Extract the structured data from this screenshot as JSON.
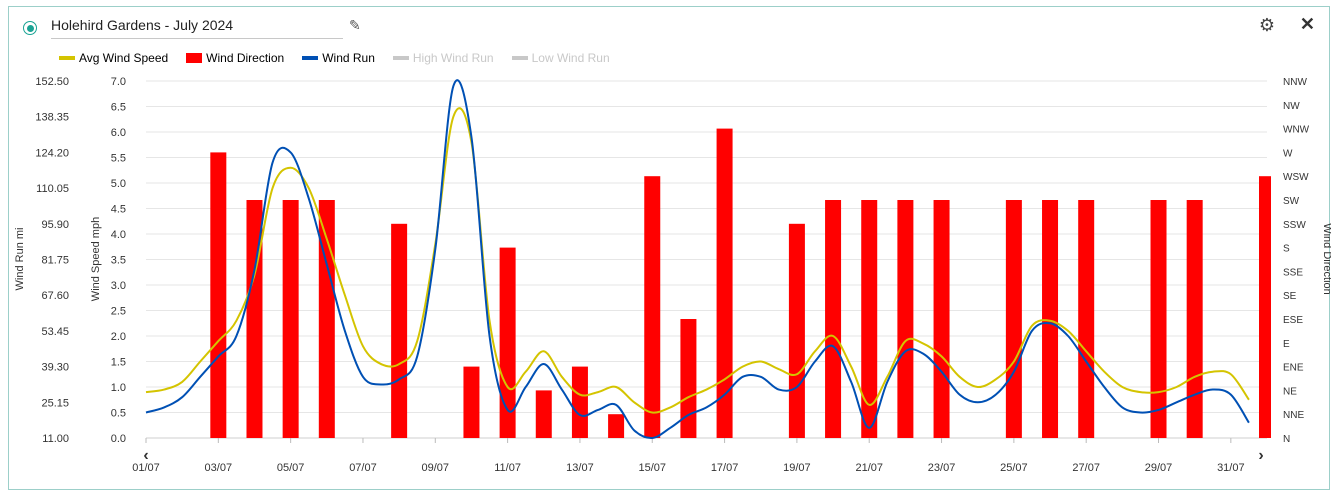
{
  "header": {
    "title": "Holehird Gardens - July 2024"
  },
  "legend": [
    {
      "label": "Avg Wind Speed",
      "color": "#d4c400",
      "enabled": true
    },
    {
      "label": "Wind Direction",
      "color": "#ff0000",
      "enabled": true
    },
    {
      "label": "Wind Run",
      "color": "#0050b4",
      "enabled": true
    },
    {
      "label": "High Wind Run",
      "color": "#c8c8c8",
      "enabled": false
    },
    {
      "label": "Low Wind Run",
      "color": "#c8c8c8",
      "enabled": false
    }
  ],
  "chart_data": {
    "type": "line",
    "x_ticks": [
      "01/07",
      "03/07",
      "05/07",
      "07/07",
      "09/07",
      "11/07",
      "13/07",
      "15/07",
      "17/07",
      "19/07",
      "21/07",
      "23/07",
      "25/07",
      "27/07",
      "29/07",
      "31/07"
    ],
    "yaxis_run": {
      "label": "Wind Run mi",
      "ticks": [
        "11.00",
        "25.15",
        "39.30",
        "53.45",
        "67.60",
        "81.75",
        "95.90",
        "110.05",
        "124.20",
        "138.35",
        "152.50"
      ],
      "range": [
        11,
        152.5
      ]
    },
    "yaxis_speed": {
      "label": "Wind Speed mph",
      "ticks": [
        "0.0",
        "0.5",
        "1.0",
        "1.5",
        "2.0",
        "2.5",
        "3.0",
        "3.5",
        "4.0",
        "4.5",
        "5.0",
        "5.5",
        "6.0",
        "6.5",
        "7.0"
      ],
      "range": [
        0,
        7
      ]
    },
    "yaxis_direction": {
      "label": "Wind Direction",
      "ticks": [
        "N",
        "NNE",
        "NE",
        "ENE",
        "E",
        "ESE",
        "SE",
        "SSE",
        "S",
        "SSW",
        "SW",
        "WSW",
        "W",
        "WNW",
        "NW",
        "NNW"
      ]
    },
    "avg_wind_speed": {
      "x": [
        1,
        1.5,
        2,
        2.5,
        3,
        3.5,
        4,
        4.5,
        5,
        5.5,
        6,
        6.5,
        7,
        7.5,
        8,
        8.5,
        9,
        9.5,
        10,
        10.5,
        11,
        11.5,
        12,
        12.5,
        13,
        13.5,
        14,
        14.5,
        15,
        15.5,
        16,
        16.5,
        17,
        17.5,
        18,
        18.5,
        19,
        19.5,
        20,
        20.5,
        21,
        21.5,
        22,
        22.5,
        23,
        23.5,
        24,
        24.5,
        25,
        25.5,
        26,
        26.5,
        27,
        27.5,
        28,
        28.5,
        29,
        29.5,
        30,
        30.5,
        31,
        31.5
      ],
      "y": [
        0.9,
        0.95,
        1.1,
        1.5,
        1.9,
        2.3,
        3.2,
        4.9,
        5.3,
        4.9,
        3.9,
        2.8,
        1.8,
        1.45,
        1.45,
        1.9,
        3.8,
        6.3,
        5.8,
        2.3,
        1.0,
        1.3,
        1.7,
        1.2,
        0.85,
        0.9,
        1.0,
        0.7,
        0.5,
        0.6,
        0.8,
        0.95,
        1.15,
        1.4,
        1.5,
        1.35,
        1.25,
        1.7,
        2.0,
        1.4,
        0.65,
        1.2,
        1.9,
        1.85,
        1.6,
        1.2,
        1.0,
        1.15,
        1.5,
        2.2,
        2.3,
        2.1,
        1.7,
        1.3,
        1.0,
        0.9,
        0.9,
        1.0,
        1.2,
        1.3,
        1.25,
        0.75
      ]
    },
    "wind_run": {
      "x": [
        1,
        1.5,
        2,
        2.5,
        3,
        3.5,
        4,
        4.5,
        5,
        5.5,
        6,
        6.5,
        7,
        7.5,
        8,
        8.5,
        9,
        9.5,
        10,
        10.5,
        11,
        11.5,
        12,
        12.5,
        13,
        13.5,
        14,
        14.5,
        15,
        15.5,
        16,
        16.5,
        17,
        17.5,
        18,
        18.5,
        19,
        19.5,
        20,
        20.5,
        21,
        21.5,
        22,
        22.5,
        23,
        23.5,
        24,
        24.5,
        25,
        25.5,
        26,
        26.5,
        27,
        27.5,
        28,
        28.5,
        29,
        29.5,
        30,
        30.5,
        31,
        31.5
      ],
      "y": [
        0.5,
        0.6,
        0.8,
        1.2,
        1.6,
        2.0,
        3.3,
        5.4,
        5.6,
        4.7,
        3.4,
        2.1,
        1.2,
        1.05,
        1.15,
        1.6,
        3.7,
        6.9,
        5.9,
        2.0,
        0.55,
        1.0,
        1.45,
        0.95,
        0.45,
        0.55,
        0.65,
        0.15,
        0.0,
        0.2,
        0.45,
        0.6,
        0.85,
        1.2,
        1.2,
        0.95,
        1.0,
        1.5,
        1.8,
        1.1,
        0.2,
        1.1,
        1.7,
        1.65,
        1.3,
        0.85,
        0.7,
        0.85,
        1.3,
        2.1,
        2.25,
        2.0,
        1.5,
        1.0,
        0.6,
        0.5,
        0.55,
        0.7,
        0.85,
        0.95,
        0.85,
        0.3
      ]
    },
    "wind_direction": {
      "x": [
        3,
        4,
        5,
        6,
        8,
        10,
        11,
        12,
        13,
        14,
        15,
        16,
        17,
        19,
        20,
        21,
        22,
        23,
        25,
        26,
        27,
        29,
        30,
        32
      ],
      "values": [
        "W",
        "SW",
        "SW",
        "SW",
        "SSW",
        "ENE",
        "S",
        "NE",
        "ENE",
        "NNE",
        "WSW",
        "ESE",
        "WNW",
        "SSW",
        "SW",
        "SW",
        "SW",
        "SW",
        "SW",
        "SW",
        "SW",
        "SW",
        "SW",
        "WSW"
      ]
    }
  }
}
